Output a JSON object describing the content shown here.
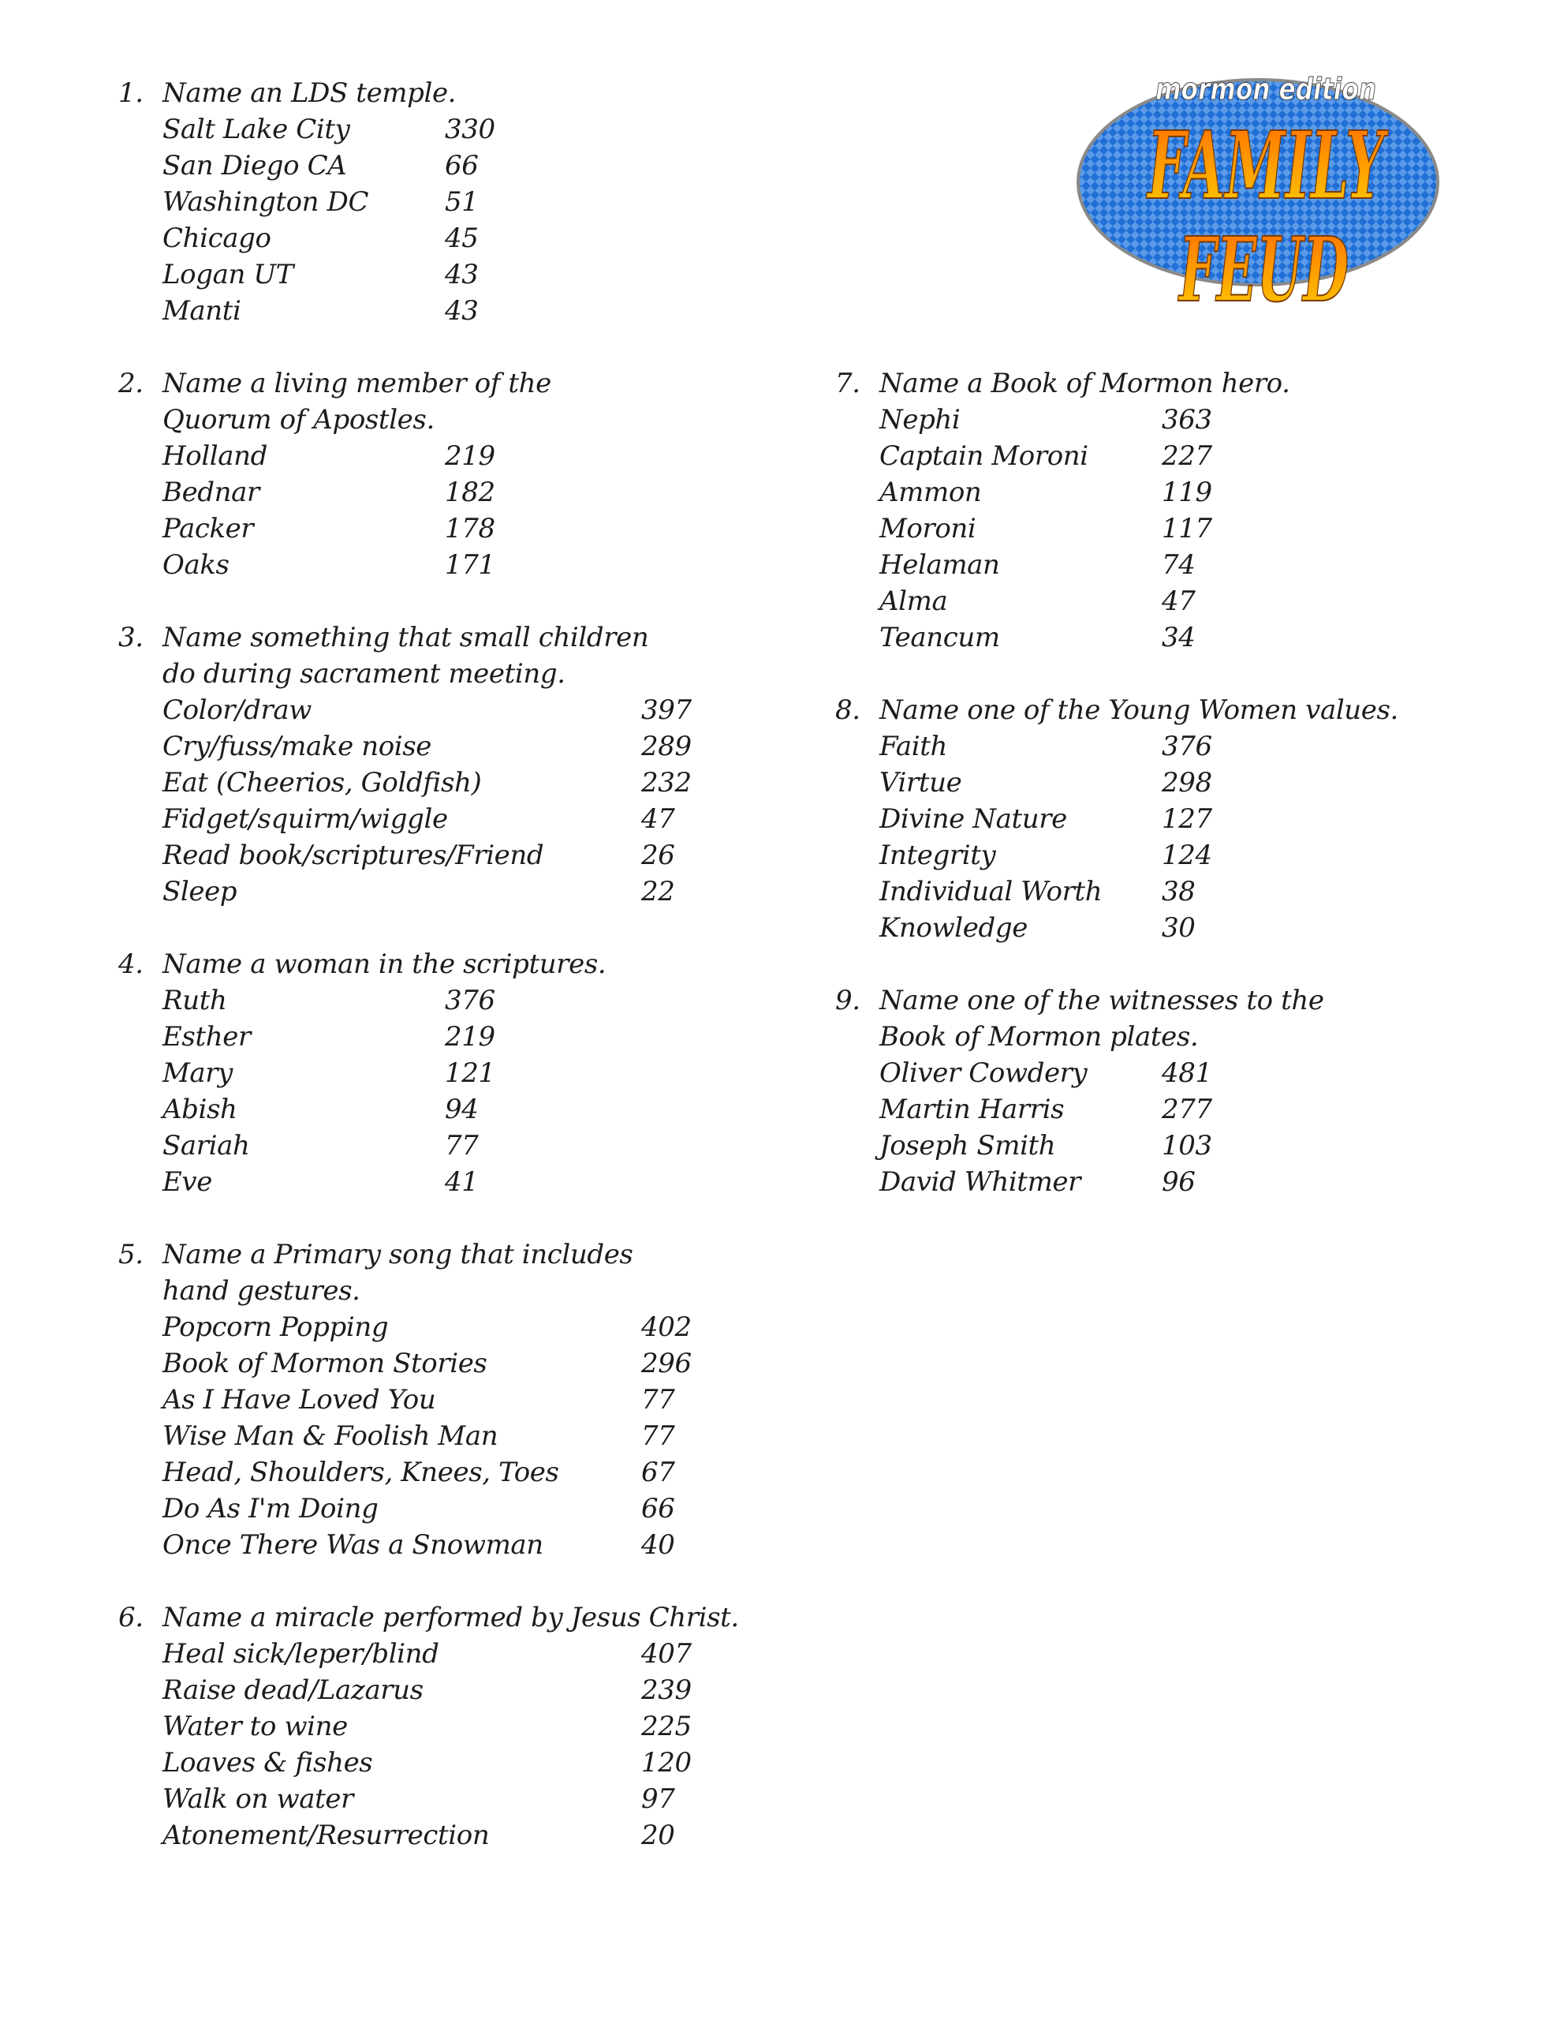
{
  "logo": {
    "subtitle": "mormon edition",
    "line1": "FAMILY",
    "line2": "FEUD",
    "colors": {
      "oval": "#1f6fd6",
      "checker": "#5a9ae8",
      "text_top": "#ff6a00",
      "text_bottom": "#ffd000"
    }
  },
  "questions": [
    {
      "number": "1.",
      "lines": [
        "Name an LDS temple."
      ],
      "column": "left",
      "wide": false,
      "answers": [
        [
          "Salt Lake City",
          "330"
        ],
        [
          "San Diego CA",
          "66"
        ],
        [
          "Washington DC",
          "51"
        ],
        [
          "Chicago",
          "45"
        ],
        [
          "Logan UT",
          "43"
        ],
        [
          "Manti",
          "43"
        ]
      ]
    },
    {
      "number": "2.",
      "lines": [
        "Name a living member of the",
        "Quorum of Apostles."
      ],
      "column": "left",
      "wide": false,
      "answers": [
        [
          "Holland",
          "219"
        ],
        [
          "Bednar",
          "182"
        ],
        [
          "Packer",
          "178"
        ],
        [
          "Oaks",
          "171"
        ]
      ]
    },
    {
      "number": "3.",
      "lines": [
        "Name something that small children",
        "do during sacrament meeting."
      ],
      "column": "left",
      "wide": true,
      "answers": [
        [
          "Color/draw",
          "397"
        ],
        [
          "Cry/fuss/make noise",
          "289"
        ],
        [
          "Eat (Cheerios, Goldfish)",
          "232"
        ],
        [
          "Fidget/squirm/wiggle",
          "47"
        ],
        [
          "Read book/scriptures/Friend",
          "26"
        ],
        [
          "Sleep",
          "22"
        ]
      ]
    },
    {
      "number": "4.",
      "lines": [
        "Name a woman in the scriptures."
      ],
      "column": "left",
      "wide": false,
      "answers": [
        [
          "Ruth",
          "376"
        ],
        [
          "Esther",
          "219"
        ],
        [
          "Mary",
          "121"
        ],
        [
          "Abish",
          "94"
        ],
        [
          "Sariah",
          "77"
        ],
        [
          "Eve",
          "41"
        ]
      ]
    },
    {
      "number": "5.",
      "lines": [
        "Name a Primary song that includes",
        "hand gestures."
      ],
      "column": "left",
      "wide": true,
      "answers": [
        [
          "Popcorn Popping",
          "402"
        ],
        [
          "Book of Mormon Stories",
          "296"
        ],
        [
          "As I Have Loved You",
          "77"
        ],
        [
          "Wise Man & Foolish Man",
          "77"
        ],
        [
          "Head, Shoulders, Knees, Toes",
          "67"
        ],
        [
          "Do As I'm Doing",
          "66"
        ],
        [
          "Once There Was a Snowman",
          "40"
        ]
      ]
    },
    {
      "number": "6.",
      "lines": [
        "Name a miracle performed by Jesus Christ."
      ],
      "column": "left",
      "wide": true,
      "answers": [
        [
          "Heal sick/leper/blind",
          "407"
        ],
        [
          "Raise dead/Lazarus",
          "239"
        ],
        [
          "Water to wine",
          "225"
        ],
        [
          "Loaves & fishes",
          "120"
        ],
        [
          "Walk on water",
          "97"
        ],
        [
          "Atonement/Resurrection",
          "20"
        ]
      ]
    },
    {
      "number": "7.",
      "lines": [
        "Name a Book of Mormon hero."
      ],
      "column": "right",
      "wide": false,
      "answers": [
        [
          "Nephi",
          "363"
        ],
        [
          "Captain Moroni",
          "227"
        ],
        [
          "Ammon",
          "119"
        ],
        [
          "Moroni",
          "117"
        ],
        [
          "Helaman",
          "74"
        ],
        [
          "Alma",
          "47"
        ],
        [
          "Teancum",
          "34"
        ]
      ]
    },
    {
      "number": "8.",
      "lines": [
        "Name one of the Young Women values."
      ],
      "column": "right",
      "wide": false,
      "answers": [
        [
          "Faith",
          "376"
        ],
        [
          "Virtue",
          "298"
        ],
        [
          "Divine Nature",
          "127"
        ],
        [
          "Integrity",
          "124"
        ],
        [
          "Individual Worth",
          "38"
        ],
        [
          "Knowledge",
          "30"
        ]
      ]
    },
    {
      "number": "9.",
      "lines": [
        "Name one of the witnesses to the",
        "Book of Mormon plates."
      ],
      "column": "right",
      "wide": false,
      "answers": [
        [
          "Oliver Cowdery",
          "481"
        ],
        [
          "Martin Harris",
          "277"
        ],
        [
          "Joseph Smith",
          "103"
        ],
        [
          "David Whitmer",
          "96"
        ]
      ]
    }
  ]
}
